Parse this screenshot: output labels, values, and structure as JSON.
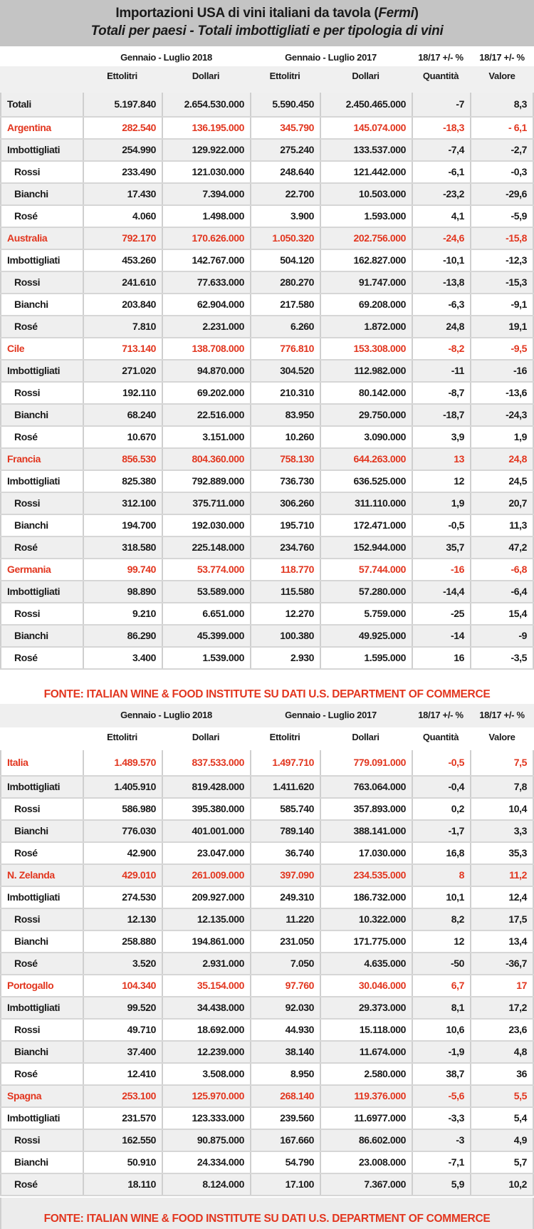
{
  "title": {
    "line1": "Importazioni  USA di vini italiani da tavola (",
    "line1_italic": "Fermi",
    "line1_end": ")",
    "line2": "Totali per paesi - Totali imbottigliati e per tipologia di vini"
  },
  "header": {
    "period_2018": "Gennaio - Luglio 2018",
    "period_2017": "Gennaio - Luglio 2017",
    "var_q": "18/17 +/- %",
    "var_v": "18/17 +/- %",
    "columns": [
      "Ettolitri",
      "Dollari",
      "Ettolitri",
      "Dollari",
      "Quantità",
      "Valore"
    ]
  },
  "source": "FONTE: ITALIAN WINE & FOOD INSTITUTE SU DATI U.S. DEPARTMENT OF COMMERCE",
  "colors": {
    "accent": "#e2361f",
    "title_bg": "#c4c4c4",
    "stripe": "#efefef"
  },
  "sections": [
    {
      "rows": [
        {
          "label": "Totali",
          "type": "total",
          "values": [
            "5.197.840",
            "2.654.530.000",
            "5.590.450",
            "2.450.465.000",
            "-7",
            "8,3"
          ]
        },
        {
          "label": "Argentina",
          "type": "country",
          "values": [
            "282.540",
            "136.195.000",
            "345.790",
            "145.074.000",
            "-18,3",
            "- 6,1"
          ]
        },
        {
          "label": "Imbottigliati",
          "type": "bottled",
          "values": [
            "254.990",
            "129.922.000",
            "275.240",
            "133.537.000",
            "-7,4",
            "-2,7"
          ]
        },
        {
          "label": "Rossi",
          "type": "sub",
          "values": [
            "233.490",
            "121.030.000",
            "248.640",
            "121.442.000",
            "-6,1",
            "-0,3"
          ]
        },
        {
          "label": "Bianchi",
          "type": "sub",
          "values": [
            "17.430",
            "7.394.000",
            "22.700",
            "10.503.000",
            "-23,2",
            "-29,6"
          ]
        },
        {
          "label": "Rosé",
          "type": "sub",
          "values": [
            "4.060",
            "1.498.000",
            "3.900",
            "1.593.000",
            "4,1",
            "-5,9"
          ]
        },
        {
          "label": "Australia",
          "type": "country",
          "values": [
            "792.170",
            "170.626.000",
            "1.050.320",
            "202.756.000",
            "-24,6",
            "-15,8"
          ]
        },
        {
          "label": "Imbottigliati",
          "type": "bottled",
          "values": [
            "453.260",
            "142.767.000",
            "504.120",
            "162.827.000",
            "-10,1",
            "-12,3"
          ]
        },
        {
          "label": "Rossi",
          "type": "sub",
          "values": [
            "241.610",
            "77.633.000",
            "280.270",
            "91.747.000",
            "-13,8",
            "-15,3"
          ]
        },
        {
          "label": "Bianchi",
          "type": "sub",
          "values": [
            "203.840",
            "62.904.000",
            "217.580",
            "69.208.000",
            "-6,3",
            "-9,1"
          ]
        },
        {
          "label": "Rosé",
          "type": "sub",
          "values": [
            "7.810",
            "2.231.000",
            "6.260",
            "1.872.000",
            "24,8",
            "19,1"
          ]
        },
        {
          "label": "Cile",
          "type": "country",
          "values": [
            "713.140",
            "138.708.000",
            "776.810",
            "153.308.000",
            "-8,2",
            "-9,5"
          ]
        },
        {
          "label": "Imbottigliati",
          "type": "bottled",
          "values": [
            "271.020",
            "94.870.000",
            "304.520",
            "112.982.000",
            "-11",
            "-16"
          ]
        },
        {
          "label": "Rossi",
          "type": "sub",
          "values": [
            "192.110",
            "69.202.000",
            "210.310",
            "80.142.000",
            "-8,7",
            "-13,6"
          ]
        },
        {
          "label": "Bianchi",
          "type": "sub",
          "values": [
            "68.240",
            "22.516.000",
            "83.950",
            "29.750.000",
            "-18,7",
            "-24,3"
          ]
        },
        {
          "label": "Rosé",
          "type": "sub",
          "values": [
            "10.670",
            "3.151.000",
            "10.260",
            "3.090.000",
            "3,9",
            "1,9"
          ]
        },
        {
          "label": "Francia",
          "type": "country",
          "values": [
            "856.530",
            "804.360.000",
            "758.130",
            "644.263.000",
            "13",
            "24,8"
          ]
        },
        {
          "label": "Imbottigliati",
          "type": "bottled",
          "values": [
            "825.380",
            "792.889.000",
            "736.730",
            "636.525.000",
            "12",
            "24,5"
          ]
        },
        {
          "label": "Rossi",
          "type": "sub",
          "values": [
            "312.100",
            "375.711.000",
            "306.260",
            "311.110.000",
            "1,9",
            "20,7"
          ]
        },
        {
          "label": "Bianchi",
          "type": "sub",
          "values": [
            "194.700",
            "192.030.000",
            "195.710",
            "172.471.000",
            "-0,5",
            "11,3"
          ]
        },
        {
          "label": "Rosé",
          "type": "sub",
          "values": [
            "318.580",
            "225.148.000",
            "234.760",
            "152.944.000",
            "35,7",
            "47,2"
          ]
        },
        {
          "label": "Germania",
          "type": "country",
          "values": [
            "99.740",
            "53.774.000",
            "118.770",
            "57.744.000",
            "-16",
            "-6,8"
          ]
        },
        {
          "label": "Imbottigliati",
          "type": "bottled",
          "values": [
            "98.890",
            "53.589.000",
            "115.580",
            "57.280.000",
            "-14,4",
            "-6,4"
          ]
        },
        {
          "label": "Rossi",
          "type": "sub",
          "values": [
            "9.210",
            "6.651.000",
            "12.270",
            "5.759.000",
            "-25",
            "15,4"
          ]
        },
        {
          "label": "Bianchi",
          "type": "sub",
          "values": [
            "86.290",
            "45.399.000",
            "100.380",
            "49.925.000",
            "-14",
            "-9"
          ]
        },
        {
          "label": "Rosé",
          "type": "sub",
          "values": [
            "3.400",
            "1.539.000",
            "2.930",
            "1.595.000",
            "16",
            "-3,5"
          ]
        }
      ]
    },
    {
      "rows": [
        {
          "label": "Italia",
          "type": "country",
          "values": [
            "1.489.570",
            "837.533.000",
            "1.497.710",
            "779.091.000",
            "-0,5",
            "7,5"
          ]
        },
        {
          "label": "Imbottigliati",
          "type": "bottled",
          "values": [
            "1.405.910",
            "819.428.000",
            "1.411.620",
            "763.064.000",
            "-0,4",
            "7,8"
          ]
        },
        {
          "label": "Rossi",
          "type": "sub",
          "values": [
            "586.980",
            "395.380.000",
            "585.740",
            "357.893.000",
            "0,2",
            "10,4"
          ]
        },
        {
          "label": "Bianchi",
          "type": "sub",
          "values": [
            "776.030",
            "401.001.000",
            "789.140",
            "388.141.000",
            "-1,7",
            "3,3"
          ]
        },
        {
          "label": "Rosé",
          "type": "sub",
          "values": [
            "42.900",
            "23.047.000",
            "36.740",
            "17.030.000",
            "16,8",
            "35,3"
          ]
        },
        {
          "label": "N. Zelanda",
          "type": "country",
          "values": [
            "429.010",
            "261.009.000",
            "397.090",
            "234.535.000",
            "8",
            "11,2"
          ]
        },
        {
          "label": "Imbottigliati",
          "type": "bottled",
          "values": [
            "274.530",
            "209.927.000",
            "249.310",
            "186.732.000",
            "10,1",
            "12,4"
          ]
        },
        {
          "label": "Rossi",
          "type": "sub",
          "values": [
            "12.130",
            "12.135.000",
            "11.220",
            "10.322.000",
            "8,2",
            "17,5"
          ]
        },
        {
          "label": "Bianchi",
          "type": "sub",
          "values": [
            "258.880",
            "194.861.000",
            "231.050",
            "171.775.000",
            "12",
            "13,4"
          ]
        },
        {
          "label": "Rosé",
          "type": "sub",
          "values": [
            "3.520",
            "2.931.000",
            "7.050",
            "4.635.000",
            "-50",
            "-36,7"
          ]
        },
        {
          "label": "Portogallo",
          "type": "country",
          "values": [
            "104.340",
            "35.154.000",
            "97.760",
            "30.046.000",
            "6,7",
            "17"
          ]
        },
        {
          "label": "Imbottigliati",
          "type": "bottled",
          "values": [
            "99.520",
            "34.438.000",
            "92.030",
            "29.373.000",
            "8,1",
            "17,2"
          ]
        },
        {
          "label": "Rossi",
          "type": "sub",
          "values": [
            "49.710",
            "18.692.000",
            "44.930",
            "15.118.000",
            "10,6",
            "23,6"
          ]
        },
        {
          "label": "Bianchi",
          "type": "sub",
          "values": [
            "37.400",
            "12.239.000",
            "38.140",
            "11.674.000",
            "-1,9",
            "4,8"
          ]
        },
        {
          "label": "Rosé",
          "type": "sub",
          "values": [
            "12.410",
            "3.508.000",
            "8.950",
            "2.580.000",
            "38,7",
            "36"
          ]
        },
        {
          "label": "Spagna",
          "type": "country",
          "values": [
            "253.100",
            "125.970.000",
            "268.140",
            "119.376.000",
            "-5,6",
            "5,5"
          ]
        },
        {
          "label": "Imbottigliati",
          "type": "bottled",
          "values": [
            "231.570",
            "123.333.000",
            "239.560",
            "11.6977.000",
            "-3,3",
            "5,4"
          ]
        },
        {
          "label": "Rossi",
          "type": "sub",
          "values": [
            "162.550",
            "90.875.000",
            "167.660",
            "86.602.000",
            "-3",
            "4,9"
          ]
        },
        {
          "label": "Bianchi",
          "type": "sub",
          "values": [
            "50.910",
            "24.334.000",
            "54.790",
            "23.008.000",
            "-7,1",
            "5,7"
          ]
        },
        {
          "label": "Rosé",
          "type": "sub",
          "values": [
            "18.110",
            "8.124.000",
            "17.100",
            "7.367.000",
            "5,9",
            "10,2"
          ]
        }
      ]
    }
  ]
}
